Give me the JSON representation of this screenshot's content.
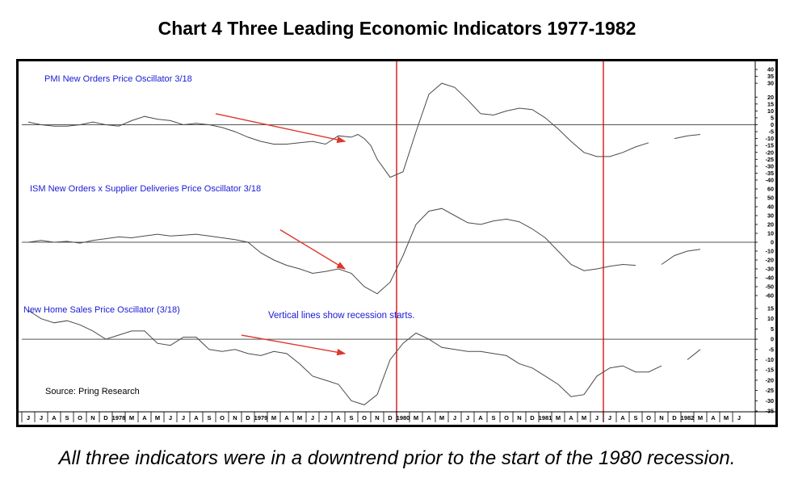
{
  "title": "Chart 4 Three Leading Economic Indicators 1977-1982",
  "caption": "All three indicators were in a downtrend prior to the start of the 1980 recession.",
  "colors": {
    "line": "#4a4a4a",
    "accent_text": "#1a1ad6",
    "recession_line": "#d40000",
    "arrow": "#e0352b",
    "zero_line": "#555555"
  },
  "chart_data": {
    "type": "line",
    "source": "Source: Pring Research",
    "annotation": "Vertical lines show recession starts.",
    "x_ticks": [
      "J",
      "J",
      "A",
      "S",
      "O",
      "N",
      "D",
      "1978",
      "M",
      "A",
      "M",
      "J",
      "J",
      "A",
      "S",
      "O",
      "N",
      "D",
      "1979",
      "M",
      "A",
      "M",
      "J",
      "J",
      "A",
      "S",
      "O",
      "N",
      "D",
      "1980",
      "M",
      "A",
      "M",
      "J",
      "J",
      "A",
      "S",
      "O",
      "N",
      "D",
      "1981",
      "M",
      "A",
      "M",
      "J",
      "J",
      "A",
      "S",
      "O",
      "N",
      "D",
      "1982",
      "M",
      "A",
      "M",
      "J"
    ],
    "recession_starts": [
      "1980-01",
      "1981-07"
    ],
    "panels": [
      {
        "name": "PMI New Orders Price Oscillator 3/18",
        "y_ticks": [
          40,
          35,
          30,
          20,
          15,
          10,
          5,
          0,
          -5,
          -10,
          -15,
          -20,
          -25,
          -30,
          -35,
          -40
        ],
        "ylim": [
          -40,
          40
        ],
        "zero_line": 0,
        "x": [
          0.0,
          1.0,
          2.0,
          3.0,
          4.0,
          5.0,
          6.0,
          7.0,
          8.0,
          9.0,
          10.0,
          11.0,
          12.0,
          13.0,
          14.0,
          15.0,
          16.0,
          17.0,
          18.0,
          19.0,
          20.0,
          21.0,
          22.0,
          23.0,
          24.0,
          25.0,
          25.5,
          26.0,
          26.5,
          27.0,
          28.0,
          29.0,
          30.0,
          31.0,
          32.0,
          33.0,
          34.0,
          35.0,
          36.0,
          37.0,
          38.0,
          39.0,
          40.0,
          41.0,
          42.0,
          43.0,
          44.0,
          45.0,
          46.0,
          47.0,
          48.0,
          49.0,
          50.0,
          51.0,
          52.0
        ],
        "y": [
          2,
          0,
          -1,
          -1,
          0,
          2,
          0,
          -1,
          3,
          6,
          4,
          3,
          0,
          1,
          0,
          -2,
          -5,
          -9,
          -12,
          -14,
          -14,
          -13,
          -12,
          -14,
          -8,
          -9,
          -7,
          -10,
          -15,
          -25,
          -38,
          -34,
          -5,
          22,
          30,
          27,
          18,
          8,
          7,
          10,
          12,
          11,
          5,
          -3,
          -12,
          -20,
          -23,
          -23,
          -20,
          -16,
          -13,
          null,
          -10,
          -8,
          -7
        ],
        "trend_arrow": {
          "from": [
            14.5,
            8
          ],
          "to": [
            24.5,
            -12
          ]
        }
      },
      {
        "name": "ISM New  Orders x Supplier Deliveries Price Oscillator 3/18",
        "y_ticks": [
          60,
          50,
          40,
          30,
          20,
          10,
          0,
          -10,
          -20,
          -30,
          -40,
          -50,
          -60
        ],
        "ylim": [
          -60,
          60
        ],
        "zero_line": 0,
        "x": [
          0.0,
          1.0,
          2.0,
          3.0,
          4.0,
          5.0,
          6.0,
          7.0,
          8.0,
          9.0,
          10.0,
          11.0,
          12.0,
          13.0,
          14.0,
          15.0,
          16.0,
          17.0,
          18.0,
          19.0,
          20.0,
          21.0,
          22.0,
          23.0,
          24.0,
          25.0,
          26.0,
          27.0,
          28.0,
          29.0,
          30.0,
          31.0,
          32.0,
          33.0,
          34.0,
          35.0,
          36.0,
          37.0,
          38.0,
          39.0,
          40.0,
          41.0,
          42.0,
          43.0,
          44.0,
          45.0,
          46.0,
          47.0,
          48.0,
          49.0,
          50.0,
          51.0,
          52.0
        ],
        "y": [
          0,
          2,
          0,
          1,
          -1,
          2,
          4,
          6,
          5,
          7,
          9,
          7,
          8,
          9,
          7,
          5,
          3,
          0,
          -12,
          -20,
          -26,
          -30,
          -35,
          -33,
          -30,
          -35,
          -50,
          -58,
          -45,
          -15,
          20,
          35,
          38,
          30,
          22,
          20,
          24,
          26,
          23,
          15,
          5,
          -10,
          -25,
          -32,
          -30,
          -27,
          -25,
          -26,
          null,
          -25,
          -15,
          -10,
          -8
        ],
        "trend_arrow": {
          "from": [
            19.5,
            14
          ],
          "to": [
            24.5,
            -30
          ]
        }
      },
      {
        "name": "New Home Sales Price Oscillator (3/18)",
        "y_ticks": [
          15,
          10,
          5,
          0,
          -5,
          -10,
          -15,
          -20,
          -25,
          -30,
          -35
        ],
        "ylim": [
          -35,
          15
        ],
        "zero_line": 0,
        "x": [
          0.0,
          1.0,
          2.0,
          3.0,
          4.0,
          5.0,
          6.0,
          7.0,
          8.0,
          9.0,
          10.0,
          11.0,
          12.0,
          13.0,
          14.0,
          15.0,
          16.0,
          17.0,
          18.0,
          19.0,
          20.0,
          21.0,
          22.0,
          23.0,
          24.0,
          25.0,
          26.0,
          27.0,
          28.0,
          29.0,
          30.0,
          31.0,
          32.0,
          33.0,
          34.0,
          35.0,
          36.0,
          37.0,
          38.0,
          39.0,
          40.0,
          41.0,
          42.0,
          43.0,
          44.0,
          45.0,
          46.0,
          47.0,
          48.0,
          49.0,
          50.0,
          51.0,
          52.0
        ],
        "y": [
          14,
          10,
          8,
          9,
          7,
          4,
          0,
          2,
          4,
          4,
          -2,
          -3,
          1,
          1,
          -5,
          -6,
          -5,
          -7,
          -8,
          -6,
          -7,
          -12,
          -18,
          -20,
          -22,
          -30,
          -32,
          -27,
          -10,
          -2,
          3,
          0,
          -4,
          -5,
          -6,
          -6,
          -7,
          -8,
          -12,
          -14,
          -18,
          -22,
          -28,
          -27,
          -18,
          -14,
          -13,
          -16,
          -16,
          -13,
          null,
          -10,
          -5
        ],
        "trend_arrow": {
          "from": [
            16.5,
            2
          ],
          "to": [
            24.5,
            -7
          ]
        }
      }
    ]
  }
}
